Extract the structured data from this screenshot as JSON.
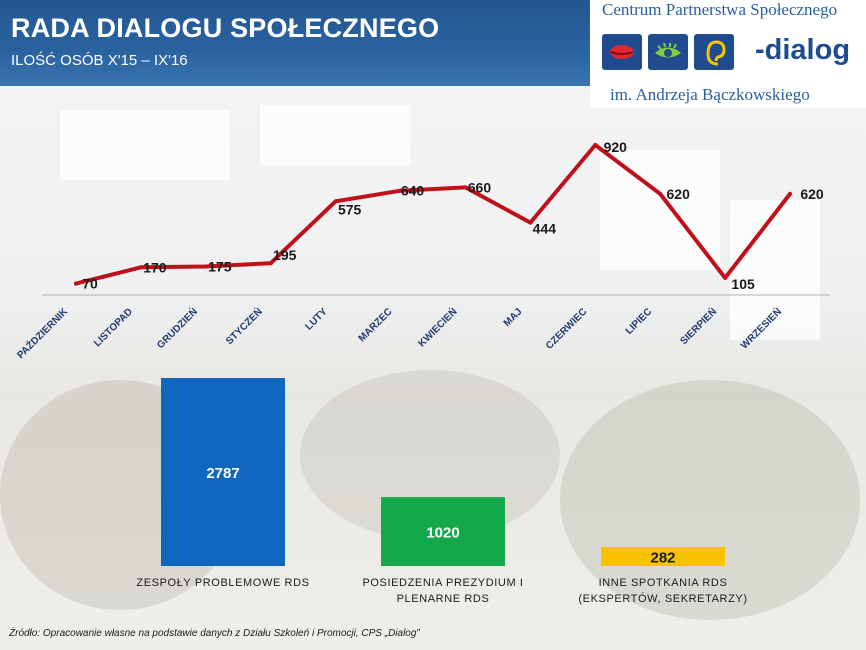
{
  "header": {
    "title": "RADA DIALOGU SPOŁECZNEGO",
    "subtitle": "ILOŚĆ OSÓB X'15 – IX'16"
  },
  "logo": {
    "top_text": "Centrum Partnerstwa Społecznego",
    "brand_text": "-dialog",
    "bottom_text": "im. Andrzeja Bączkowskiego"
  },
  "chart_data": [
    {
      "type": "line",
      "categories": [
        "PAŹDZIERNIK",
        "LISTOPAD",
        "GRUDZIEŃ",
        "STYCZEŃ",
        "LUTY",
        "MARZEC",
        "KWIECIEŃ",
        "MAJ",
        "CZERWIEC",
        "LIPIEC",
        "SIERPIEŃ",
        "WRZESIEŃ"
      ],
      "series": [
        {
          "values": [
            70,
            170,
            175,
            195,
            575,
            640,
            660,
            444,
            920,
            620,
            105,
            620
          ],
          "color": "#c0101a"
        }
      ],
      "value_labels": [
        "70",
        "170",
        "175",
        "195",
        "575",
        "640",
        "660",
        "444",
        "920",
        "620",
        "105",
        "620"
      ],
      "ylim": [
        0,
        1000
      ],
      "grid": false,
      "axis_color": "#b0b0b0"
    },
    {
      "type": "bar",
      "categories": [
        "ZESPOŁY PROBLEMOWE RDS",
        "POSIEDZENIA PREZYDIUM I PLENARNE RDS",
        "INNE SPOTKANIA RDS (EKSPERTÓW, SEKRETARZY)"
      ],
      "category_lines": [
        [
          "ZESPOŁY PROBLEMOWE RDS"
        ],
        [
          "POSIEDZENIA PREZYDIUM I",
          "PLENARNE RDS"
        ],
        [
          "INNE SPOTKANIA RDS",
          "(EKSPERTÓW, SEKRETARZY)"
        ]
      ],
      "values": [
        2787,
        1020,
        282
      ],
      "value_labels": [
        "2787",
        "1020",
        "282"
      ],
      "colors": [
        "#0f67c0",
        "#13a84a",
        "#f7c300"
      ],
      "value_label_colors": [
        "#ffffff",
        "#ffffff",
        "#1a1a1a"
      ],
      "ylim": [
        0,
        2787
      ]
    }
  ],
  "source_note": "Źródło: Opracowanie własne na podstawie danych z Działu Szkoleń i Promocji, CPS „Dialog”"
}
